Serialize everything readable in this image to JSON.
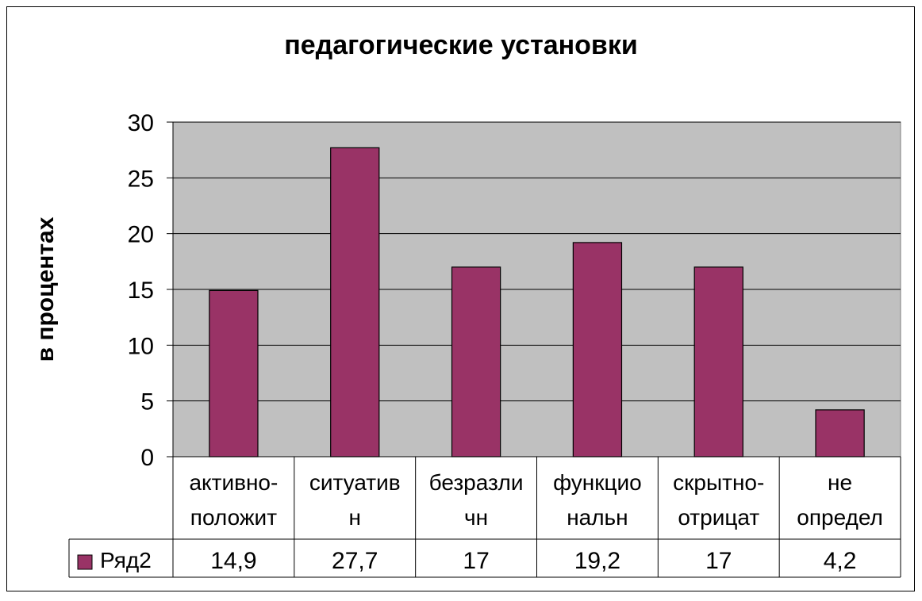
{
  "chart_data": {
    "type": "bar",
    "title": "педагогические установки",
    "ylabel": "в процентах",
    "xlabel": "",
    "ylim": [
      0,
      30
    ],
    "yticks": [
      0,
      5,
      10,
      15,
      20,
      25,
      30
    ],
    "grid": true,
    "categories": [
      [
        "активно-",
        "положит"
      ],
      [
        "ситуатив",
        "н"
      ],
      [
        "безразли",
        "чн"
      ],
      [
        "функцио",
        "нальн"
      ],
      [
        "скрытно-",
        "отрицат"
      ],
      [
        "не",
        "определ"
      ]
    ],
    "series": [
      {
        "name": "Ряд2",
        "values": [
          14.9,
          27.7,
          17,
          19.2,
          17,
          4.2
        ],
        "value_labels": [
          "14,9",
          "27,7",
          "17",
          "19,2",
          "17",
          "4,2"
        ],
        "color": "#993366"
      }
    ],
    "plot_background": "#c0c0c0",
    "legend": "data-table"
  }
}
